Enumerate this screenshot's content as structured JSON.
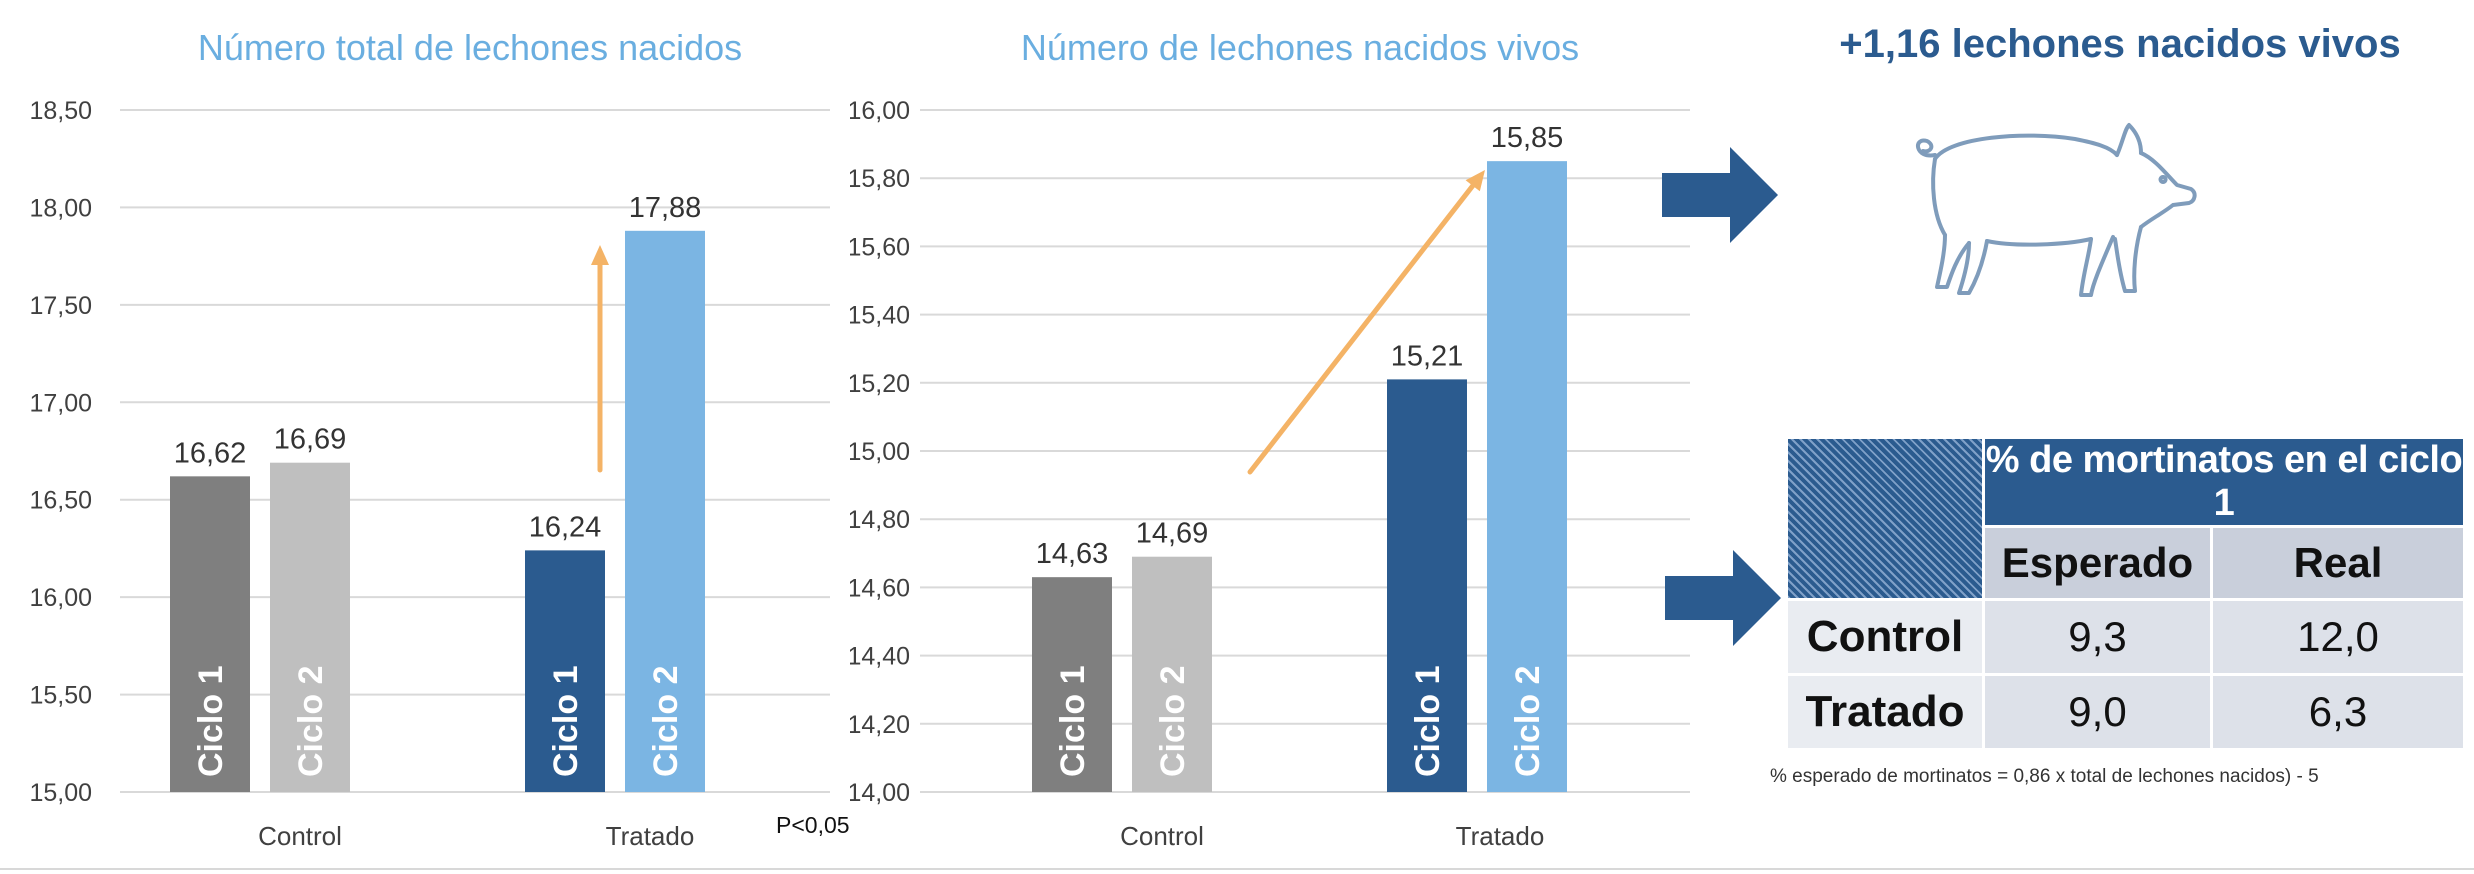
{
  "chart_data": [
    {
      "type": "bar",
      "title": "Número total de lechones nacidos",
      "categories": [
        "Control",
        "Tratado"
      ],
      "series": [
        {
          "name": "Ciclo 1",
          "values": [
            16.62,
            16.24
          ]
        },
        {
          "name": "Ciclo 2",
          "values": [
            16.69,
            17.88
          ]
        }
      ],
      "value_labels": [
        [
          "16,62",
          "16,69"
        ],
        [
          "16,24",
          "17,88"
        ]
      ],
      "bar_labels": [
        "Ciclo 1",
        "Ciclo 2"
      ],
      "ylim": [
        15.0,
        18.5
      ],
      "yticks": [
        "15,00",
        "15,50",
        "16,00",
        "16,50",
        "17,00",
        "17,50",
        "18,00",
        "18,50"
      ],
      "annotation": "P<0,05"
    },
    {
      "type": "bar",
      "title": "Número de lechones nacidos vivos",
      "categories": [
        "Control",
        "Tratado"
      ],
      "series": [
        {
          "name": "Ciclo 1",
          "values": [
            14.63,
            15.21
          ]
        },
        {
          "name": "Ciclo 2",
          "values": [
            14.69,
            15.85
          ]
        }
      ],
      "value_labels": [
        [
          "14,63",
          "14,69"
        ],
        [
          "15,21",
          "15,85"
        ]
      ],
      "bar_labels": [
        "Ciclo 1",
        "Ciclo 2"
      ],
      "ylim": [
        14.0,
        16.0
      ],
      "yticks": [
        "14,00",
        "14,20",
        "14,40",
        "14,60",
        "14,80",
        "15,00",
        "15,20",
        "15,40",
        "15,60",
        "15,80",
        "16,00"
      ]
    }
  ],
  "colors": {
    "control_c1": "#7f7f7f",
    "control_c2": "#bfbfbf",
    "tratado_c1": "#2b5b8f",
    "tratado_c2": "#7bb5e3",
    "title": "#6aaee0",
    "trend_arrow": "#f4b366",
    "navy": "#2b5b8f",
    "grid": "#d9d9d9"
  },
  "headline": "+1,16 lechones nacidos vivos",
  "icons": {
    "pig": "pig-icon",
    "arrow": "right-arrow-icon"
  },
  "mortality_table": {
    "title": "% de mortinatos en el ciclo 1",
    "columns": [
      "Esperado",
      "Real"
    ],
    "rows": [
      {
        "label": "Control",
        "esperado": "9,3",
        "real": "12,0"
      },
      {
        "label": "Tratado",
        "esperado": "9,0",
        "real": "6,3"
      }
    ]
  },
  "footnote": "% esperado de mortinatos = 0,86 x total de lechones nacidos) - 5"
}
